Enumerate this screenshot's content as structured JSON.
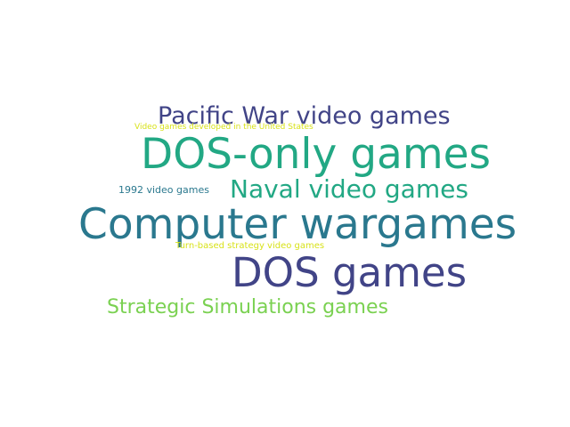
{
  "word_cloud": {
    "words": [
      {
        "id": "pacific",
        "text": "Pacific War video games",
        "color": "#414487"
      },
      {
        "id": "usdev",
        "text": "Video games developed in the United States",
        "color": "#d8e219"
      },
      {
        "id": "dosonly",
        "text": "DOS-only games",
        "color": "#22a884"
      },
      {
        "id": "1992",
        "text": "1992 video games",
        "color": "#2a788e"
      },
      {
        "id": "naval",
        "text": "Naval video games",
        "color": "#22a884"
      },
      {
        "id": "wargames",
        "text": "Computer wargames",
        "color": "#2a788e"
      },
      {
        "id": "turnbased",
        "text": "Turn-based strategy video games",
        "color": "#d8e219"
      },
      {
        "id": "dosgames",
        "text": "DOS games",
        "color": "#414487"
      },
      {
        "id": "ssi",
        "text": "Strategic Simulations games",
        "color": "#7ad151"
      }
    ]
  }
}
